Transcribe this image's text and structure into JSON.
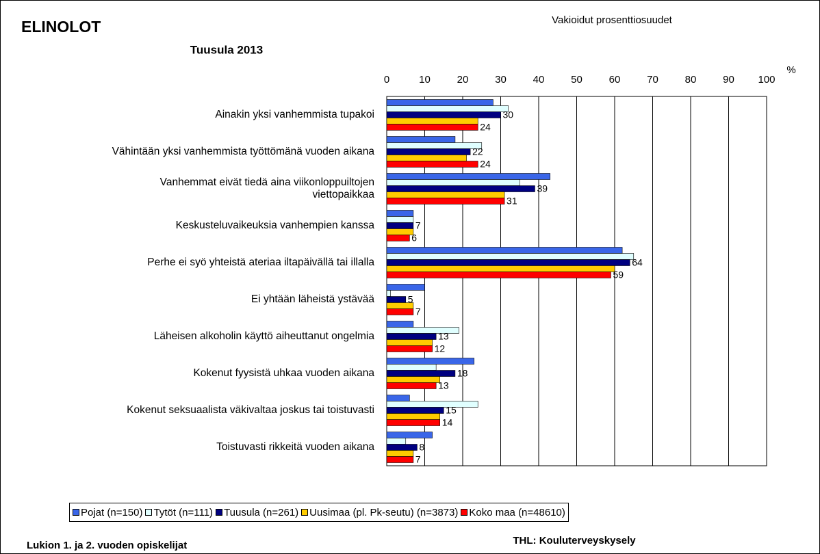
{
  "chart_data": {
    "type": "bar",
    "orientation": "horizontal",
    "title": "ELINOLOT",
    "subtitle": "Tuusula 2013",
    "note": "Vakioidut prosenttiosuudet",
    "x_label": "%",
    "footer_left": "Lukion 1. ja 2. vuoden opiskelijat",
    "footer_right": "THL: Kouluterveyskysely",
    "categories": [
      "Ainakin yksi vanhemmista tupakoi",
      "Vähintään yksi vanhemmista työttömänä vuoden aikana",
      "Vanhemmat eivät tiedä aina viikonloppuiltojen\nviettopaikkaa",
      "Keskusteluvaikeuksia vanhempien kanssa",
      "Perhe ei syö yhteistä ateriaa iltapäivällä tai illalla",
      "Ei yhtään läheistä ystävää",
      "Läheisen alkoholin käyttö aiheuttanut ongelmia",
      "Kokenut fyysistä uhkaa vuoden aikana",
      "Kokenut seksuaalista väkivaltaa joskus tai toistuvasti",
      "Toistuvasti rikkeitä vuoden aikana"
    ],
    "series": [
      {
        "name": "Pojat (n=150)",
        "color": "#3a66e8",
        "labels": false,
        "values": [
          28,
          18,
          43,
          7,
          62,
          10,
          7,
          23,
          6,
          12
        ]
      },
      {
        "name": "Tytöt (n=111)",
        "color": "#e0ffff",
        "labels": false,
        "values": [
          32,
          25,
          35,
          7,
          65,
          1,
          19,
          13,
          24,
          5
        ]
      },
      {
        "name": "Tuusula (n=261)",
        "color": "#000080",
        "labels": true,
        "values": [
          30,
          22,
          39,
          7,
          64,
          5,
          13,
          18,
          15,
          8
        ]
      },
      {
        "name": "Uusimaa (pl. Pk-seutu) (n=3873)",
        "color": "#ffcc00",
        "labels": false,
        "values": [
          24,
          21,
          31,
          7,
          60,
          7,
          12,
          14,
          14,
          7
        ]
      },
      {
        "name": "Koko maa (n=48610)",
        "color": "#ff0000",
        "labels": true,
        "values": [
          24,
          24,
          31,
          6,
          59,
          7,
          12,
          13,
          14,
          7
        ]
      }
    ],
    "xlim": [
      0,
      100
    ],
    "xticks": [
      0,
      10,
      20,
      30,
      40,
      50,
      60,
      70,
      80,
      90,
      100
    ],
    "grid": true
  }
}
